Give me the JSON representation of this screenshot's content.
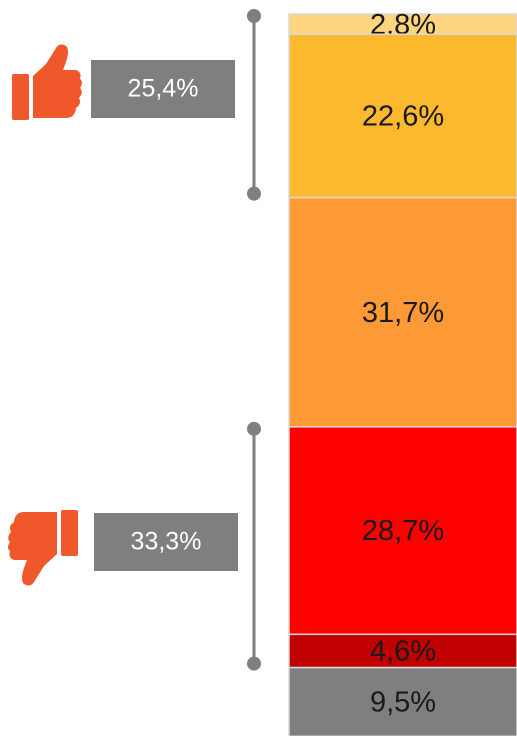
{
  "chart_data": {
    "type": "bar",
    "stacked": true,
    "values": [
      2.8,
      22.6,
      31.7,
      28.7,
      4.6,
      9.5
    ],
    "value_labels": [
      "2,8%",
      "22,6%",
      "31,7%",
      "28,7%",
      "4,6%",
      "9,5%"
    ],
    "colors": [
      "#fdd57e",
      "#fdb92e",
      "#fd9a35",
      "#fe0000",
      "#c00000",
      "#7f7f7f"
    ],
    "annotations": [
      "25,4%",
      "33,3%"
    ]
  }
}
